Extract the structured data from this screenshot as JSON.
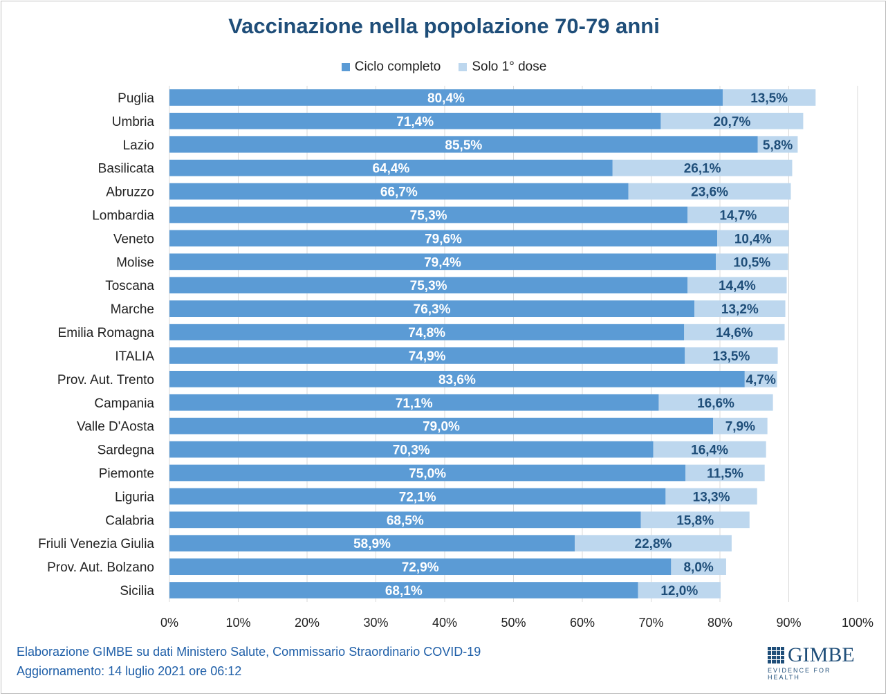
{
  "title": "Vaccinazione nella popolazione 70-79 anni",
  "footer": {
    "line1": "Elaborazione GIMBE su dati Ministero Salute, Commissario Straordinario COVID-19",
    "line2": "Aggiornamento: 14 luglio 2021 ore 06:12"
  },
  "logo": {
    "name": "GIMBE",
    "tagline": "EVIDENCE FOR HEALTH",
    "icon": "grid-logo-icon"
  },
  "colors": {
    "ciclo_completo": "#5b9bd5",
    "solo_prima_dose": "#bdd7ee",
    "title": "#1f4e79",
    "footer": "#1f5fa8"
  },
  "chart_data": {
    "type": "bar",
    "orientation": "horizontal",
    "stacked": true,
    "title": "Vaccinazione nella popolazione 70-79 anni",
    "xlim": [
      0,
      100
    ],
    "x_ticks": [
      "0%",
      "10%",
      "20%",
      "30%",
      "40%",
      "50%",
      "60%",
      "70%",
      "80%",
      "90%",
      "100%"
    ],
    "grid": true,
    "legend_position": "top-center",
    "categories": [
      "Puglia",
      "Umbria",
      "Lazio",
      "Basilicata",
      "Abruzzo",
      "Lombardia",
      "Veneto",
      "Molise",
      "Toscana",
      "Marche",
      "Emilia Romagna",
      "ITALIA",
      "Prov. Aut. Trento",
      "Campania",
      "Valle D'Aosta",
      "Sardegna",
      "Piemonte",
      "Liguria",
      "Calabria",
      "Friuli Venezia Giulia",
      "Prov. Aut. Bolzano",
      "Sicilia"
    ],
    "series": [
      {
        "name": "Ciclo completo",
        "values": [
          80.4,
          71.4,
          85.5,
          64.4,
          66.7,
          75.3,
          79.6,
          79.4,
          75.3,
          76.3,
          74.8,
          74.9,
          83.6,
          71.1,
          79.0,
          70.3,
          75.0,
          72.1,
          68.5,
          58.9,
          72.9,
          68.1
        ],
        "labels": [
          "80,4%",
          "71,4%",
          "85,5%",
          "64,4%",
          "66,7%",
          "75,3%",
          "79,6%",
          "79,4%",
          "75,3%",
          "76,3%",
          "74,8%",
          "74,9%",
          "83,6%",
          "71,1%",
          "79,0%",
          "70,3%",
          "75,0%",
          "72,1%",
          "68,5%",
          "58,9%",
          "72,9%",
          "68,1%"
        ]
      },
      {
        "name": "Solo 1° dose",
        "values": [
          13.5,
          20.7,
          5.8,
          26.1,
          23.6,
          14.7,
          10.4,
          10.5,
          14.4,
          13.2,
          14.6,
          13.5,
          4.7,
          16.6,
          7.9,
          16.4,
          11.5,
          13.3,
          15.8,
          22.8,
          8.0,
          12.0
        ],
        "labels": [
          "13,5%",
          "20,7%",
          "5,8%",
          "26,1%",
          "23,6%",
          "14,7%",
          "10,4%",
          "10,5%",
          "14,4%",
          "13,2%",
          "14,6%",
          "13,5%",
          "4,7%",
          "16,6%",
          "7,9%",
          "16,4%",
          "11,5%",
          "13,3%",
          "15,8%",
          "22,8%",
          "8,0%",
          "12,0%"
        ]
      }
    ]
  }
}
